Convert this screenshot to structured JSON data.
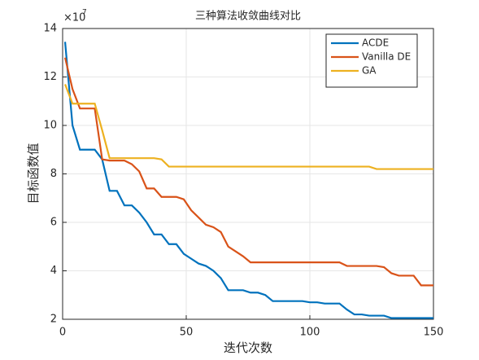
{
  "chart_data": {
    "type": "line",
    "title": "三种算法收敛曲线对比",
    "x_label": "迭代次数",
    "y_label": "目标函数值",
    "y_scale_label": "×10",
    "y_scale_exponent": "7",
    "x": [
      1,
      4,
      7,
      10,
      13,
      16,
      19,
      22,
      25,
      28,
      31,
      34,
      37,
      40,
      43,
      46,
      49,
      52,
      55,
      58,
      61,
      64,
      67,
      70,
      73,
      76,
      79,
      82,
      85,
      88,
      91,
      94,
      97,
      100,
      103,
      106,
      109,
      112,
      115,
      118,
      121,
      124,
      127,
      130,
      133,
      136,
      139,
      142,
      145,
      148,
      150
    ],
    "series": [
      {
        "name": "ACDE",
        "color": "#0072BD",
        "values": [
          13.45,
          10.0,
          9.0,
          9.0,
          9.0,
          8.6,
          7.3,
          7.3,
          6.7,
          6.7,
          6.4,
          6.0,
          5.5,
          5.5,
          5.1,
          5.1,
          4.7,
          4.5,
          4.3,
          4.2,
          4.0,
          3.7,
          3.2,
          3.2,
          3.2,
          3.1,
          3.1,
          3.0,
          2.75,
          2.75,
          2.75,
          2.75,
          2.75,
          2.7,
          2.7,
          2.65,
          2.65,
          2.65,
          2.4,
          2.2,
          2.2,
          2.15,
          2.15,
          2.15,
          2.05,
          2.05,
          2.05,
          2.05,
          2.05,
          2.05,
          2.05
        ]
      },
      {
        "name": "Vanilla DE",
        "color": "#D95319",
        "values": [
          12.8,
          11.5,
          10.7,
          10.7,
          10.7,
          8.6,
          8.55,
          8.55,
          8.55,
          8.4,
          8.1,
          7.4,
          7.4,
          7.05,
          7.05,
          7.05,
          6.95,
          6.5,
          6.2,
          5.9,
          5.8,
          5.6,
          5.0,
          4.8,
          4.6,
          4.35,
          4.35,
          4.35,
          4.35,
          4.35,
          4.35,
          4.35,
          4.35,
          4.35,
          4.35,
          4.35,
          4.35,
          4.35,
          4.2,
          4.2,
          4.2,
          4.2,
          4.2,
          4.15,
          3.9,
          3.8,
          3.8,
          3.8,
          3.4,
          3.4,
          3.4
        ]
      },
      {
        "name": "GA",
        "color": "#EDB120",
        "values": [
          11.7,
          10.9,
          10.9,
          10.9,
          10.9,
          9.8,
          8.65,
          8.65,
          8.65,
          8.65,
          8.65,
          8.65,
          8.65,
          8.6,
          8.3,
          8.3,
          8.3,
          8.3,
          8.3,
          8.3,
          8.3,
          8.3,
          8.3,
          8.3,
          8.3,
          8.3,
          8.3,
          8.3,
          8.3,
          8.3,
          8.3,
          8.3,
          8.3,
          8.3,
          8.3,
          8.3,
          8.3,
          8.3,
          8.3,
          8.3,
          8.3,
          8.3,
          8.2,
          8.2,
          8.2,
          8.2,
          8.2,
          8.2,
          8.2,
          8.2,
          8.2
        ]
      }
    ],
    "xlim": [
      0,
      150
    ],
    "xticks": [
      0,
      50,
      100,
      150
    ],
    "ylim": [
      2,
      14
    ],
    "yticks": [
      2,
      4,
      6,
      8,
      10,
      12,
      14
    ],
    "grid": true,
    "legend": "top-right"
  }
}
